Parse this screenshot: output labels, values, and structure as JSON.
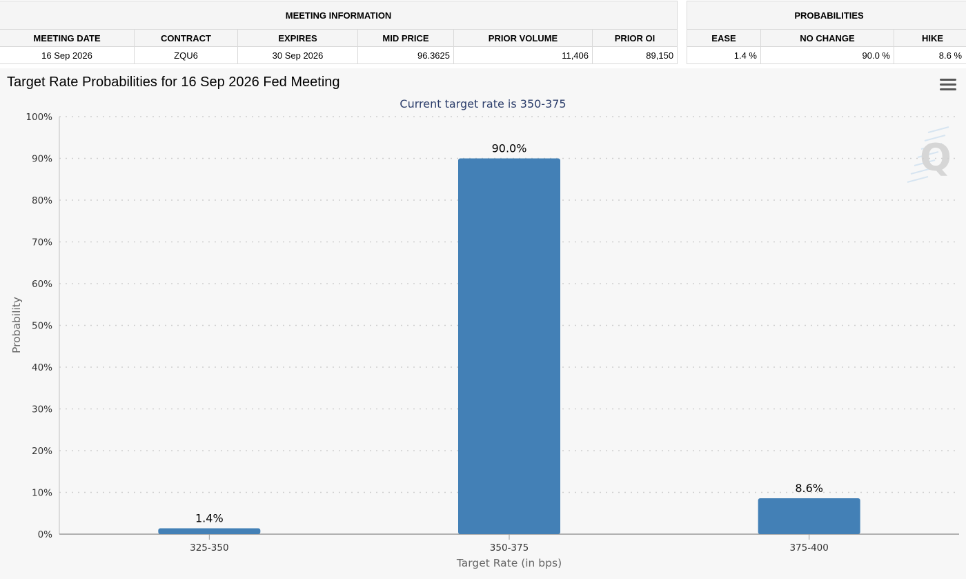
{
  "meeting_info": {
    "header": "MEETING INFORMATION",
    "columns": [
      "MEETING DATE",
      "CONTRACT",
      "EXPIRES",
      "MID PRICE",
      "PRIOR VOLUME",
      "PRIOR OI"
    ],
    "row": [
      "16 Sep 2026",
      "ZQU6",
      "30 Sep 2026",
      "96.3625",
      "11,406",
      "89,150"
    ]
  },
  "probabilities": {
    "header": "PROBABILITIES",
    "columns": [
      "EASE",
      "NO CHANGE",
      "HIKE"
    ],
    "row": [
      "1.4 %",
      "90.0 %",
      "8.6 %"
    ]
  },
  "chart_title": "Target Rate Probabilities for 16 Sep 2026 Fed Meeting",
  "menu_icon": "hamburger-menu-icon",
  "watermark_icon": "q-logo-icon",
  "chart_data": {
    "type": "bar",
    "subtitle": "Current target rate is 350-375",
    "categories": [
      "325-350",
      "350-375",
      "375-400"
    ],
    "values": [
      1.4,
      90.0,
      8.6
    ],
    "data_labels": [
      "1.4%",
      "90.0%",
      "8.6%"
    ],
    "xlabel": "Target Rate (in bps)",
    "ylabel": "Probability",
    "ylim": [
      0,
      100
    ],
    "yticks": [
      "0%",
      "10%",
      "20%",
      "30%",
      "40%",
      "50%",
      "60%",
      "70%",
      "80%",
      "90%",
      "100%"
    ],
    "grid": true,
    "bar_color": "#4380b6"
  }
}
